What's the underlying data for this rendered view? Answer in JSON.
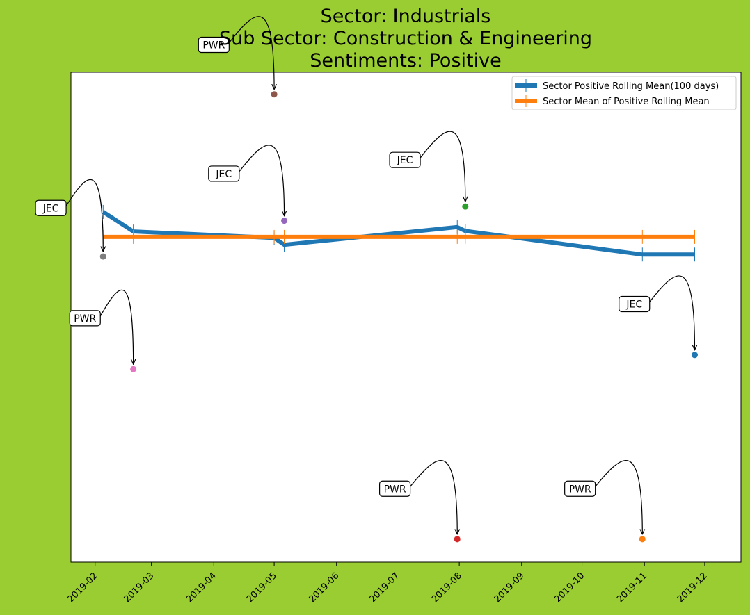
{
  "chart_data": {
    "type": "line",
    "title": [
      "Sector:  Industrials",
      "Sub Sector:  Construction & Engineering",
      "Sentiments:  Positive"
    ],
    "xlabel": "",
    "ylabel": "",
    "x_axis": {
      "type": "date",
      "range": [
        "2019-01-20",
        "2019-12-19"
      ],
      "ticks": [
        "2019-02-01",
        "2019-03-01",
        "2019-04-01",
        "2019-05-01",
        "2019-06-01",
        "2019-07-01",
        "2019-08-01",
        "2019-09-01",
        "2019-10-01",
        "2019-11-01",
        "2019-12-01"
      ],
      "tick_labels": [
        "2019-02",
        "2019-03",
        "2019-04",
        "2019-05",
        "2019-06",
        "2019-07",
        "2019-08",
        "2019-09",
        "2019-10",
        "2019-11",
        "2019-12"
      ]
    },
    "y_axis": {
      "range": [
        0,
        100
      ],
      "ticks_shown": false
    },
    "grid": false,
    "legend": {
      "placement": "top-right"
    },
    "series": [
      {
        "name": "Sector Positive Rolling Mean(100 days)",
        "color": "#1f77b4",
        "x": [
          "2019-02-05",
          "2019-02-20",
          "2019-05-01",
          "2019-05-06",
          "2019-07-31",
          "2019-08-04",
          "2019-10-31",
          "2019-11-26"
        ],
        "y": [
          71.5,
          67.5,
          66.2,
          64.8,
          68.4,
          67.6,
          62.8,
          62.8
        ]
      },
      {
        "name": "Sector Mean of Positive Rolling Mean",
        "color": "#ff7f0e",
        "x": [
          "2019-02-05",
          "2019-02-20",
          "2019-05-01",
          "2019-05-06",
          "2019-07-31",
          "2019-08-04",
          "2019-10-31",
          "2019-11-26"
        ],
        "y": [
          66.4,
          66.4,
          66.4,
          66.4,
          66.4,
          66.4,
          66.4,
          66.4
        ]
      }
    ],
    "scatter_points": [
      {
        "x": "2019-02-05",
        "y": 62.4,
        "color": "#7f7f7f"
      },
      {
        "x": "2019-02-20",
        "y": 39.4,
        "color": "#e377c2"
      },
      {
        "x": "2019-05-01",
        "y": 95.5,
        "color": "#8c564b"
      },
      {
        "x": "2019-05-06",
        "y": 69.7,
        "color": "#9467bd"
      },
      {
        "x": "2019-07-31",
        "y": 4.7,
        "color": "#d62728"
      },
      {
        "x": "2019-08-04",
        "y": 72.6,
        "color": "#2ca02c"
      },
      {
        "x": "2019-10-31",
        "y": 4.7,
        "color": "#ff7f0e"
      },
      {
        "x": "2019-11-26",
        "y": 42.3,
        "color": "#1f77b4"
      }
    ],
    "annotations": [
      {
        "text": "JEC",
        "point": 0,
        "label_x": "2019-01-10",
        "label_y": 72.3
      },
      {
        "text": "PWR",
        "point": 1,
        "label_x": "2019-01-27",
        "label_y": 49.8
      },
      {
        "text": "PWR",
        "point": 2,
        "label_x": "2019-04-01",
        "label_y": 105.6
      },
      {
        "text": "JEC",
        "point": 3,
        "label_x": "2019-04-06",
        "label_y": 79.3
      },
      {
        "text": "PWR",
        "point": 4,
        "label_x": "2019-06-30",
        "label_y": 15.0
      },
      {
        "text": "JEC",
        "point": 5,
        "label_x": "2019-07-05",
        "label_y": 82.1
      },
      {
        "text": "PWR",
        "point": 6,
        "label_x": "2019-09-30",
        "label_y": 15.0
      },
      {
        "text": "JEC",
        "point": 7,
        "label_x": "2019-10-27",
        "label_y": 52.7
      }
    ]
  }
}
